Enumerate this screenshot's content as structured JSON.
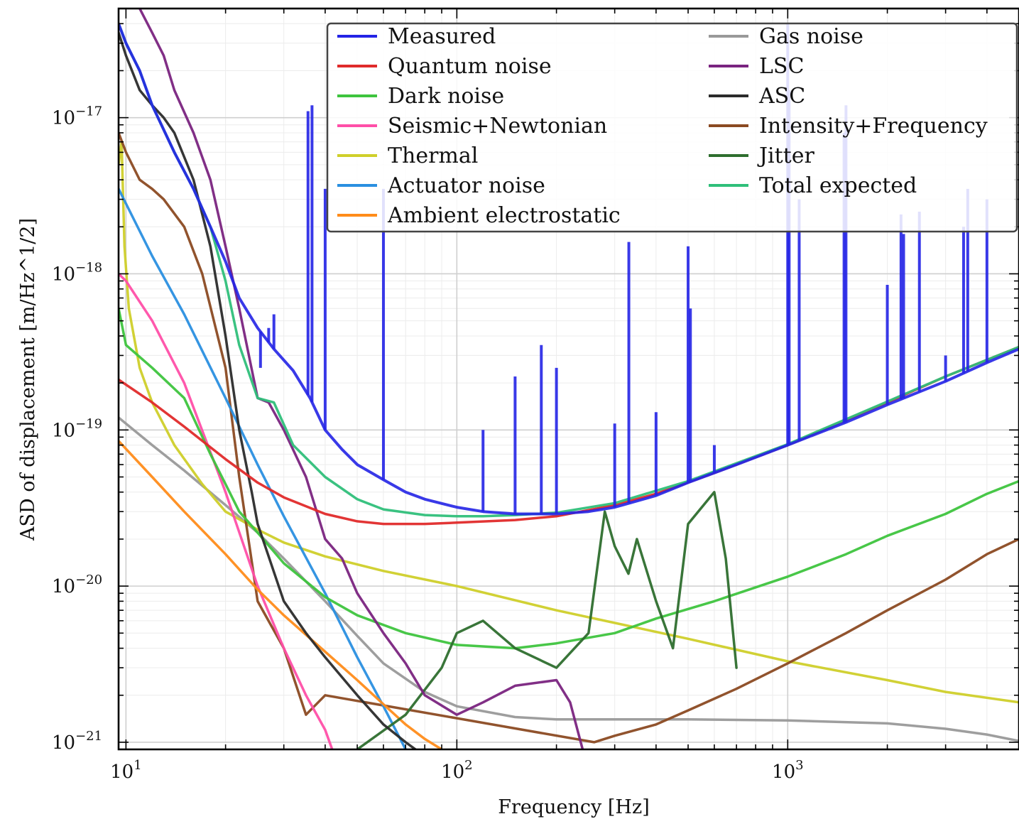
{
  "chart_data": {
    "type": "line",
    "title": "",
    "xlabel": "Frequency [Hz]",
    "ylabel": "ASD of displacement [m/Hz^1/2]",
    "xscale": "log",
    "yscale": "log",
    "xlim": [
      9.5,
      5000
    ],
    "ylim": [
      9e-22,
      5e-17
    ],
    "grid": true,
    "legend": {
      "loc": "top-right",
      "ncol": 2
    },
    "x_ticks": [
      {
        "base": "10",
        "exp": "1"
      },
      {
        "base": "10",
        "exp": "2"
      },
      {
        "base": "10",
        "exp": "3"
      }
    ],
    "y_ticks": [
      {
        "base": "10",
        "exp": "−21"
      },
      {
        "base": "10",
        "exp": "−20"
      },
      {
        "base": "10",
        "exp": "−19"
      },
      {
        "base": "10",
        "exp": "−18"
      },
      {
        "base": "10",
        "exp": "−17"
      }
    ],
    "series": [
      {
        "name": "Measured",
        "color": "#2424e6",
        "x": [
          9.5,
          10,
          11,
          12,
          14,
          16,
          18,
          20,
          22,
          25,
          28,
          32,
          36,
          40,
          45,
          50,
          60,
          70,
          80,
          100,
          120,
          150,
          200,
          250,
          300,
          400,
          500,
          700,
          1000,
          1500,
          2000,
          3000,
          4000,
          5000
        ],
        "y": [
          4e-17,
          3e-17,
          2e-17,
          1.2e-17,
          6e-18,
          3.5e-18,
          2e-18,
          1.2e-18,
          7e-19,
          4.5e-19,
          3.3e-19,
          2.4e-19,
          1.6e-19,
          1e-19,
          7.5e-20,
          6e-20,
          4.8e-20,
          4e-20,
          3.6e-20,
          3.2e-20,
          3e-20,
          2.9e-20,
          2.9e-20,
          3e-20,
          3.2e-20,
          3.8e-20,
          4.6e-20,
          6e-20,
          8e-20,
          1.12e-19,
          1.45e-19,
          2.05e-19,
          2.7e-19,
          3.3e-19
        ],
        "peaks": [
          {
            "x": 25.5,
            "y": 2.5e-19
          },
          {
            "x": 27,
            "y": 4.5e-19
          },
          {
            "x": 28,
            "y": 5.5e-19
          },
          {
            "x": 35.5,
            "y": 1.1e-17
          },
          {
            "x": 36.5,
            "y": 1.2e-17
          },
          {
            "x": 40,
            "y": 3.5e-18
          },
          {
            "x": 60,
            "y": 3.5e-18
          },
          {
            "x": 120,
            "y": 1e-19
          },
          {
            "x": 150,
            "y": 2.2e-19
          },
          {
            "x": 180,
            "y": 3.5e-19
          },
          {
            "x": 200,
            "y": 2.5e-19
          },
          {
            "x": 300,
            "y": 1.1e-19
          },
          {
            "x": 331,
            "y": 1.6e-18
          },
          {
            "x": 400,
            "y": 1.3e-19
          },
          {
            "x": 500,
            "y": 1.5e-18
          },
          {
            "x": 508,
            "y": 6e-19
          },
          {
            "x": 600,
            "y": 8e-20
          },
          {
            "x": 1000,
            "y": 4e-17
          },
          {
            "x": 1010,
            "y": 1.5e-17
          },
          {
            "x": 1083,
            "y": 3e-18
          },
          {
            "x": 1480,
            "y": 8e-18
          },
          {
            "x": 1500,
            "y": 1.2e-17
          },
          {
            "x": 2000,
            "y": 8.5e-19
          },
          {
            "x": 2200,
            "y": 2.4e-18
          },
          {
            "x": 2240,
            "y": 1.8e-18
          },
          {
            "x": 2500,
            "y": 2.5e-18
          },
          {
            "x": 3000,
            "y": 3e-19
          },
          {
            "x": 3400,
            "y": 2e-18
          },
          {
            "x": 3500,
            "y": 3.5e-18
          },
          {
            "x": 4000,
            "y": 3e-18
          }
        ]
      },
      {
        "name": "Quantum noise",
        "color": "#e02a2a",
        "x": [
          9.5,
          12,
          15,
          20,
          25,
          30,
          40,
          50,
          60,
          80,
          100,
          150,
          200,
          300,
          400,
          600,
          1000,
          2000,
          3000,
          5000
        ],
        "y": [
          2.1e-19,
          1.5e-19,
          1.05e-19,
          6.5e-20,
          4.6e-20,
          3.7e-20,
          2.9e-20,
          2.6e-20,
          2.5e-20,
          2.5e-20,
          2.55e-20,
          2.65e-20,
          2.8e-20,
          3.3e-20,
          3.9e-20,
          5.3e-20,
          8e-20,
          1.5e-19,
          2.2e-19,
          3.4e-19
        ]
      },
      {
        "name": "Dark noise",
        "color": "#3ec43e",
        "x": [
          9.5,
          10,
          12,
          15,
          18,
          20,
          22,
          25,
          30,
          40,
          50,
          70,
          100,
          150,
          200,
          300,
          400,
          600,
          1000,
          1500,
          2000,
          3000,
          4000,
          5000
        ],
        "y": [
          6e-19,
          3.5e-19,
          2.5e-19,
          1.6e-19,
          7e-20,
          4.5e-20,
          3e-20,
          2.2e-20,
          1.4e-20,
          8.5e-21,
          6.5e-21,
          5e-21,
          4.2e-21,
          4e-21,
          4.3e-21,
          5e-21,
          6.2e-21,
          8e-21,
          1.15e-20,
          1.6e-20,
          2.1e-20,
          2.9e-20,
          3.9e-20,
          4.7e-20
        ]
      },
      {
        "name": "Seismic+Newtonian",
        "color": "#ff4fa8",
        "x": [
          9.5,
          10,
          12,
          15,
          20,
          25,
          30,
          35,
          40,
          42
        ],
        "y": [
          1e-18,
          9e-19,
          5e-19,
          2e-19,
          4e-20,
          1e-20,
          4e-21,
          2e-21,
          1.2e-21,
          9e-22
        ]
      },
      {
        "name": "Thermal",
        "color": "#cfcf2a",
        "x": [
          9.5,
          9.7,
          9.9,
          10.2,
          11,
          12,
          14,
          17,
          20,
          25,
          30,
          40,
          60,
          100,
          200,
          500,
          1000,
          2000,
          3000,
          5000
        ],
        "y": [
          5e-18,
          7e-18,
          1.5e-18,
          6e-19,
          2.5e-19,
          1.5e-19,
          8e-20,
          4.5e-20,
          3e-20,
          2.3e-20,
          1.9e-20,
          1.55e-20,
          1.25e-20,
          1e-20,
          7e-21,
          4.6e-21,
          3.3e-21,
          2.5e-21,
          2.1e-21,
          1.8e-21
        ]
      },
      {
        "name": "Actuator noise",
        "color": "#2a8fe0",
        "x": [
          9.5,
          12,
          15,
          20,
          25,
          30,
          40,
          50,
          60,
          70
        ],
        "y": [
          3.5e-18,
          1.3e-18,
          5.5e-19,
          1.6e-19,
          6e-20,
          2.8e-20,
          9e-21,
          3.5e-21,
          1.7e-21,
          9e-22
        ]
      },
      {
        "name": "Ambient electrostatic",
        "color": "#ff8c1a",
        "x": [
          9.5,
          12,
          15,
          20,
          25,
          30,
          40,
          50,
          60,
          70,
          80,
          90
        ],
        "y": [
          8.5e-20,
          5e-20,
          3e-20,
          1.6e-20,
          9.5e-21,
          6.5e-21,
          3.8e-21,
          2.5e-21,
          1.75e-21,
          1.3e-21,
          1.05e-21,
          9e-22
        ]
      },
      {
        "name": "Gas noise",
        "color": "#999999",
        "x": [
          9.5,
          12,
          15,
          20,
          25,
          30,
          40,
          50,
          60,
          80,
          100,
          150,
          200,
          300,
          500,
          1000,
          2000,
          3000,
          4000,
          5000
        ],
        "y": [
          1.2e-19,
          8e-20,
          5.5e-20,
          3.3e-20,
          2.2e-20,
          1.5e-20,
          8e-21,
          4.8e-21,
          3.2e-21,
          2.1e-21,
          1.7e-21,
          1.45e-21,
          1.4e-21,
          1.4e-21,
          1.4e-21,
          1.38e-21,
          1.32e-21,
          1.22e-21,
          1.12e-21,
          1.02e-21
        ]
      },
      {
        "name": "LSC",
        "color": "#7a2480",
        "x": [
          11,
          12,
          13,
          14,
          16,
          18,
          20,
          22,
          25,
          27,
          30,
          35,
          40,
          45,
          50,
          60,
          70,
          80,
          100,
          120,
          150,
          200,
          220,
          240
        ],
        "y": [
          5e-17,
          3.5e-17,
          2.5e-17,
          1.5e-17,
          8e-18,
          4e-18,
          1.5e-18,
          6e-19,
          1.6e-19,
          1.5e-19,
          1e-19,
          5e-20,
          2e-20,
          1.5e-20,
          9e-21,
          5e-21,
          3.2e-21,
          2e-21,
          1.5e-21,
          1.8e-21,
          2.3e-21,
          2.5e-21,
          1.8e-21,
          9e-22
        ]
      },
      {
        "name": "ASC",
        "color": "#2b2b2b",
        "x": [
          9.5,
          10,
          11,
          12,
          13,
          14,
          16,
          18,
          20,
          22,
          24,
          25,
          30,
          35,
          40,
          50,
          60,
          70,
          75
        ],
        "y": [
          3.5e-17,
          2.5e-17,
          1.5e-17,
          1.2e-17,
          1e-17,
          8e-18,
          4e-18,
          1.5e-18,
          4e-19,
          1e-19,
          4e-20,
          2.5e-20,
          8e-21,
          5e-21,
          3.5e-21,
          2e-21,
          1.3e-21,
          1e-21,
          9e-22
        ]
      },
      {
        "name": "Intensity+Frequency",
        "color": "#8b4a22",
        "x": [
          9.5,
          10,
          11,
          12,
          13,
          15,
          17,
          20,
          22,
          25,
          30,
          35,
          40,
          260,
          300,
          400,
          500,
          700,
          1000,
          1500,
          2000,
          3000,
          4000,
          5000
        ],
        "y": [
          8e-18,
          6e-18,
          4e-18,
          3.5e-18,
          3e-18,
          2e-18,
          1e-18,
          2.5e-19,
          5e-20,
          8e-21,
          4e-21,
          1.5e-21,
          2e-21,
          1e-21,
          1.1e-21,
          1.3e-21,
          1.6e-21,
          2.2e-21,
          3.2e-21,
          5e-21,
          7e-21,
          1.1e-20,
          1.6e-20,
          2e-20
        ]
      },
      {
        "name": "Jitter",
        "color": "#2e6e2e",
        "x": [
          50,
          70,
          90,
          100,
          120,
          150,
          200,
          250,
          280,
          300,
          330,
          350,
          400,
          450,
          500,
          600,
          650,
          700
        ],
        "y": [
          9e-22,
          1.5e-21,
          3e-21,
          5e-21,
          6e-21,
          4e-21,
          3e-21,
          5e-21,
          3e-20,
          1.8e-20,
          1.2e-20,
          2e-20,
          8e-21,
          4e-21,
          2.5e-20,
          4e-20,
          1.5e-20,
          3e-21
        ]
      },
      {
        "name": "Total expected",
        "color": "#2fbf7a",
        "x": [
          9.5,
          10,
          11,
          12,
          14,
          16,
          18,
          20,
          22,
          25,
          28,
          32,
          40,
          50,
          60,
          80,
          100,
          120,
          150,
          200,
          300,
          500,
          1000,
          2000,
          3000,
          5000
        ],
        "y": [
          4e-17,
          3e-17,
          2e-17,
          1.2e-17,
          6e-18,
          3.5e-18,
          2e-18,
          9e-19,
          3.5e-19,
          1.6e-19,
          1.5e-19,
          8e-20,
          5e-20,
          3.6e-20,
          3.1e-20,
          2.85e-20,
          2.8e-20,
          2.8e-20,
          2.85e-20,
          2.95e-20,
          3.4e-20,
          4.7e-20,
          8.1e-20,
          1.52e-19,
          2.2e-19,
          3.4e-19
        ]
      }
    ]
  }
}
